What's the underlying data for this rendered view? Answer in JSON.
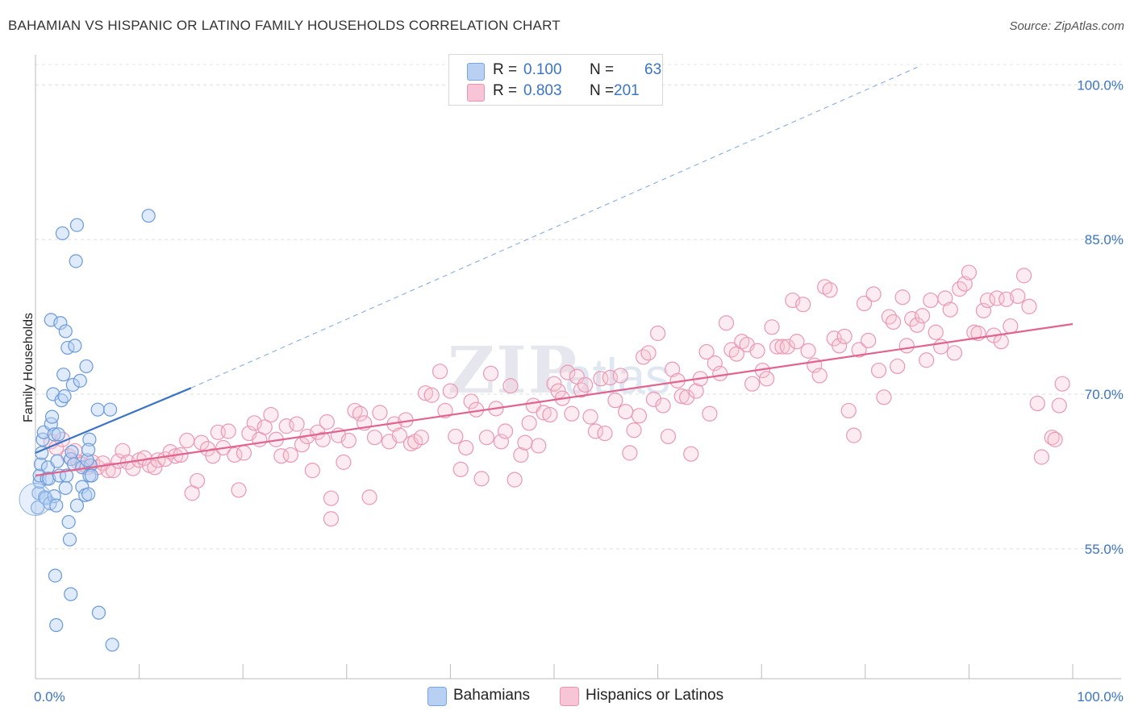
{
  "title": "BAHAMIAN VS HISPANIC OR LATINO FAMILY HOUSEHOLDS CORRELATION CHART",
  "source": "Source: ZipAtlas.com",
  "watermark": {
    "zip": "ZIP",
    "atlas": "atlas"
  },
  "colors": {
    "blue": "#3a74c4",
    "blue_fill": "#b8d1f3",
    "pink": "#e0648e",
    "pink_fill": "#f7c5d5",
    "grid": "#dddddd"
  },
  "stats": [
    {
      "r_label": "R =",
      "r": "0.100",
      "n_label": "N =",
      "n": "63"
    },
    {
      "r_label": "R =",
      "r": "0.803",
      "n_label": "N =",
      "n": "201"
    }
  ],
  "legend": [
    "Bahamians",
    "Hispanics or Latinos"
  ],
  "chart_data": {
    "type": "scatter",
    "title": "BAHAMIAN VS HISPANIC OR LATINO FAMILY HOUSEHOLDS CORRELATION CHART",
    "ylabel": "Family Households",
    "xlabel": "",
    "xlim": [
      0,
      100
    ],
    "ylim": [
      42.4,
      102.6
    ],
    "x_tick_labels": [
      "0.0%",
      "100.0%"
    ],
    "y_ticks": [
      55.0,
      70.0,
      85.0,
      100.0
    ],
    "y_tick_labels": [
      "55.0%",
      "70.0%",
      "85.0%",
      "100.0%"
    ],
    "series": [
      {
        "name": "Bahamians",
        "R": 0.1,
        "N": 63,
        "trend": {
          "x": [
            0,
            15
          ],
          "y": [
            64.3,
            70.6
          ]
        },
        "trend_extension": {
          "x": [
            15,
            85
          ],
          "y": [
            70.6,
            101.7
          ]
        },
        "points": [
          [
            0.2,
            59.0
          ],
          [
            0.3,
            60.4
          ],
          [
            0.4,
            61.5
          ],
          [
            0.4,
            62.1
          ],
          [
            0.5,
            63.2
          ],
          [
            0.6,
            64.3
          ],
          [
            0.7,
            65.6
          ],
          [
            0.8,
            66.3
          ],
          [
            0.9,
            60.0
          ],
          [
            1.0,
            59.9
          ],
          [
            1.1,
            61.8
          ],
          [
            1.2,
            62.9
          ],
          [
            1.3,
            61.8
          ],
          [
            1.4,
            59.4
          ],
          [
            1.5,
            67.1
          ],
          [
            1.5,
            77.2
          ],
          [
            1.6,
            67.8
          ],
          [
            1.7,
            70.0
          ],
          [
            1.8,
            60.1
          ],
          [
            1.8,
            66.1
          ],
          [
            1.9,
            52.4
          ],
          [
            2.0,
            47.6
          ],
          [
            2.0,
            59.2
          ],
          [
            2.1,
            63.5
          ],
          [
            2.2,
            66.1
          ],
          [
            2.3,
            62.1
          ],
          [
            2.4,
            76.9
          ],
          [
            2.5,
            69.4
          ],
          [
            2.6,
            85.6
          ],
          [
            2.7,
            71.9
          ],
          [
            2.8,
            69.8
          ],
          [
            2.9,
            60.9
          ],
          [
            2.9,
            76.1
          ],
          [
            3.0,
            62.1
          ],
          [
            3.1,
            74.5
          ],
          [
            3.2,
            57.6
          ],
          [
            3.3,
            55.9
          ],
          [
            3.4,
            50.6
          ],
          [
            3.4,
            63.7
          ],
          [
            3.5,
            64.4
          ],
          [
            3.6,
            70.9
          ],
          [
            3.7,
            63.2
          ],
          [
            3.8,
            74.7
          ],
          [
            3.9,
            82.9
          ],
          [
            4.0,
            59.2
          ],
          [
            4.0,
            86.4
          ],
          [
            4.3,
            71.3
          ],
          [
            4.5,
            62.9
          ],
          [
            4.5,
            61.0
          ],
          [
            4.8,
            60.2
          ],
          [
            4.9,
            72.7
          ],
          [
            5.1,
            60.3
          ],
          [
            5.3,
            63.1
          ],
          [
            5.2,
            62.1
          ],
          [
            5.2,
            65.6
          ],
          [
            5.0,
            63.6
          ],
          [
            5.1,
            64.6
          ],
          [
            5.4,
            62.1
          ],
          [
            6.0,
            68.5
          ],
          [
            6.1,
            48.8
          ],
          [
            7.2,
            68.5
          ],
          [
            7.4,
            45.7
          ],
          [
            10.9,
            87.3
          ]
        ]
      },
      {
        "name": "Hispanics or Latinos",
        "R": 0.803,
        "N": 201,
        "trend": {
          "x": [
            0,
            100
          ],
          "y": [
            62.1,
            76.8
          ]
        },
        "points": [
          [
            1.5,
            65.4
          ],
          [
            2.0,
            64.8
          ],
          [
            2.6,
            65.6
          ],
          [
            3.2,
            64.0
          ],
          [
            3.8,
            64.5
          ],
          [
            4.1,
            63.4
          ],
          [
            4.5,
            63.2
          ],
          [
            5.0,
            62.9
          ],
          [
            5.5,
            63.4
          ],
          [
            6.0,
            62.9
          ],
          [
            6.5,
            63.3
          ],
          [
            7.0,
            62.6
          ],
          [
            7.5,
            62.6
          ],
          [
            8.0,
            63.5
          ],
          [
            8.4,
            64.5
          ],
          [
            8.9,
            63.4
          ],
          [
            9.4,
            62.8
          ],
          [
            10.0,
            63.6
          ],
          [
            10.5,
            63.8
          ],
          [
            11.0,
            63.1
          ],
          [
            11.5,
            62.9
          ],
          [
            11.8,
            63.6
          ],
          [
            12.5,
            63.7
          ],
          [
            13.0,
            64.4
          ],
          [
            13.5,
            64.0
          ],
          [
            14.0,
            64.1
          ],
          [
            14.6,
            65.5
          ],
          [
            15.1,
            60.4
          ],
          [
            15.6,
            61.6
          ],
          [
            16.0,
            65.3
          ],
          [
            16.6,
            64.7
          ],
          [
            17.1,
            64.0
          ],
          [
            17.6,
            66.3
          ],
          [
            18.1,
            64.8
          ],
          [
            18.6,
            66.4
          ],
          [
            19.2,
            64.1
          ],
          [
            19.6,
            60.7
          ],
          [
            20.1,
            64.3
          ],
          [
            20.6,
            66.2
          ],
          [
            21.1,
            67.2
          ],
          [
            21.6,
            65.6
          ],
          [
            22.1,
            66.8
          ],
          [
            22.7,
            68.0
          ],
          [
            23.2,
            65.6
          ],
          [
            23.7,
            64.0
          ],
          [
            24.2,
            66.9
          ],
          [
            24.6,
            64.1
          ],
          [
            25.2,
            67.1
          ],
          [
            25.7,
            65.1
          ],
          [
            26.2,
            65.9
          ],
          [
            26.7,
            62.6
          ],
          [
            27.2,
            66.3
          ],
          [
            27.7,
            65.6
          ],
          [
            28.1,
            67.3
          ],
          [
            28.5,
            59.9
          ],
          [
            28.5,
            57.9
          ],
          [
            29.2,
            66.0
          ],
          [
            29.7,
            63.4
          ],
          [
            30.2,
            65.5
          ],
          [
            30.8,
            68.4
          ],
          [
            31.3,
            68.1
          ],
          [
            31.7,
            67.2
          ],
          [
            32.2,
            60.0
          ],
          [
            32.7,
            65.8
          ],
          [
            33.2,
            68.2
          ],
          [
            34.1,
            65.4
          ],
          [
            34.6,
            67.1
          ],
          [
            35.1,
            66.0
          ],
          [
            35.7,
            67.5
          ],
          [
            36.2,
            65.2
          ],
          [
            36.6,
            65.4
          ],
          [
            37.2,
            65.8
          ],
          [
            37.6,
            70.1
          ],
          [
            38.2,
            69.9
          ],
          [
            39.0,
            72.2
          ],
          [
            39.5,
            68.4
          ],
          [
            40.0,
            70.3
          ],
          [
            40.5,
            65.9
          ],
          [
            41.0,
            62.7
          ],
          [
            41.5,
            64.8
          ],
          [
            42.0,
            69.3
          ],
          [
            42.5,
            68.5
          ],
          [
            43.0,
            61.8
          ],
          [
            43.5,
            65.8
          ],
          [
            43.9,
            72.0
          ],
          [
            44.4,
            68.6
          ],
          [
            44.9,
            65.4
          ],
          [
            45.3,
            66.4
          ],
          [
            45.8,
            70.8
          ],
          [
            46.2,
            61.7
          ],
          [
            46.8,
            64.1
          ],
          [
            47.2,
            65.3
          ],
          [
            47.6,
            67.2
          ],
          [
            48.0,
            68.9
          ],
          [
            48.5,
            65.0
          ],
          [
            49.0,
            68.2
          ],
          [
            49.6,
            68.0
          ],
          [
            50.0,
            71.0
          ],
          [
            50.4,
            70.3
          ],
          [
            50.8,
            69.6
          ],
          [
            51.3,
            72.1
          ],
          [
            51.7,
            68.1
          ],
          [
            52.2,
            71.7
          ],
          [
            52.6,
            70.4
          ],
          [
            53.0,
            70.9
          ],
          [
            53.5,
            67.8
          ],
          [
            54.0,
            66.4
          ],
          [
            54.5,
            71.5
          ],
          [
            54.9,
            66.2
          ],
          [
            55.4,
            71.6
          ],
          [
            55.9,
            69.4
          ],
          [
            56.4,
            71.8
          ],
          [
            56.9,
            68.3
          ],
          [
            57.3,
            64.3
          ],
          [
            57.7,
            66.5
          ],
          [
            58.2,
            67.9
          ],
          [
            58.6,
            73.6
          ],
          [
            59.1,
            74.0
          ],
          [
            59.6,
            69.5
          ],
          [
            60.0,
            75.9
          ],
          [
            60.5,
            68.9
          ],
          [
            61.0,
            65.9
          ],
          [
            61.4,
            72.4
          ],
          [
            61.9,
            71.3
          ],
          [
            62.3,
            69.8
          ],
          [
            62.8,
            69.7
          ],
          [
            63.2,
            64.2
          ],
          [
            63.7,
            70.3
          ],
          [
            64.1,
            71.5
          ],
          [
            64.7,
            74.1
          ],
          [
            65.0,
            68.1
          ],
          [
            65.5,
            73.0
          ],
          [
            66.0,
            72.0
          ],
          [
            66.6,
            76.9
          ],
          [
            67.1,
            74.3
          ],
          [
            67.6,
            73.9
          ],
          [
            68.1,
            75.1
          ],
          [
            68.6,
            74.8
          ],
          [
            69.1,
            71.0
          ],
          [
            69.6,
            74.2
          ],
          [
            70.1,
            72.3
          ],
          [
            70.5,
            71.5
          ],
          [
            71.0,
            76.5
          ],
          [
            71.5,
            74.6
          ],
          [
            72.0,
            74.6
          ],
          [
            72.5,
            74.6
          ],
          [
            73.0,
            79.1
          ],
          [
            73.4,
            75.1
          ],
          [
            74.0,
            78.7
          ],
          [
            74.5,
            74.2
          ],
          [
            75.1,
            72.8
          ],
          [
            75.6,
            71.8
          ],
          [
            76.1,
            80.4
          ],
          [
            76.6,
            80.1
          ],
          [
            77.0,
            75.4
          ],
          [
            77.5,
            74.7
          ],
          [
            78.0,
            75.6
          ],
          [
            78.4,
            68.4
          ],
          [
            78.9,
            66.0
          ],
          [
            79.4,
            74.3
          ],
          [
            79.9,
            78.8
          ],
          [
            80.3,
            75.2
          ],
          [
            80.8,
            79.7
          ],
          [
            81.3,
            72.3
          ],
          [
            81.8,
            69.7
          ],
          [
            82.3,
            77.5
          ],
          [
            82.7,
            77.0
          ],
          [
            83.1,
            72.7
          ],
          [
            83.6,
            79.4
          ],
          [
            84.0,
            74.7
          ],
          [
            84.5,
            77.3
          ],
          [
            85.0,
            76.7
          ],
          [
            85.5,
            77.6
          ],
          [
            85.9,
            73.3
          ],
          [
            86.3,
            79.1
          ],
          [
            86.8,
            76.0
          ],
          [
            87.3,
            74.6
          ],
          [
            87.7,
            79.3
          ],
          [
            88.2,
            78.2
          ],
          [
            88.6,
            74.0
          ],
          [
            89.1,
            80.2
          ],
          [
            89.6,
            80.7
          ],
          [
            90.0,
            81.8
          ],
          [
            90.5,
            76.0
          ],
          [
            90.9,
            75.9
          ],
          [
            91.4,
            78.1
          ],
          [
            91.8,
            79.1
          ],
          [
            92.4,
            75.7
          ],
          [
            92.7,
            79.3
          ],
          [
            93.1,
            75.1
          ],
          [
            93.6,
            79.2
          ],
          [
            94.0,
            76.6
          ],
          [
            94.7,
            79.5
          ],
          [
            95.3,
            81.5
          ],
          [
            95.8,
            78.5
          ],
          [
            96.6,
            69.1
          ],
          [
            97.0,
            63.9
          ],
          [
            98.0,
            65.8
          ],
          [
            98.3,
            65.6
          ],
          [
            98.7,
            68.9
          ],
          [
            99.0,
            71.0
          ]
        ]
      }
    ]
  }
}
